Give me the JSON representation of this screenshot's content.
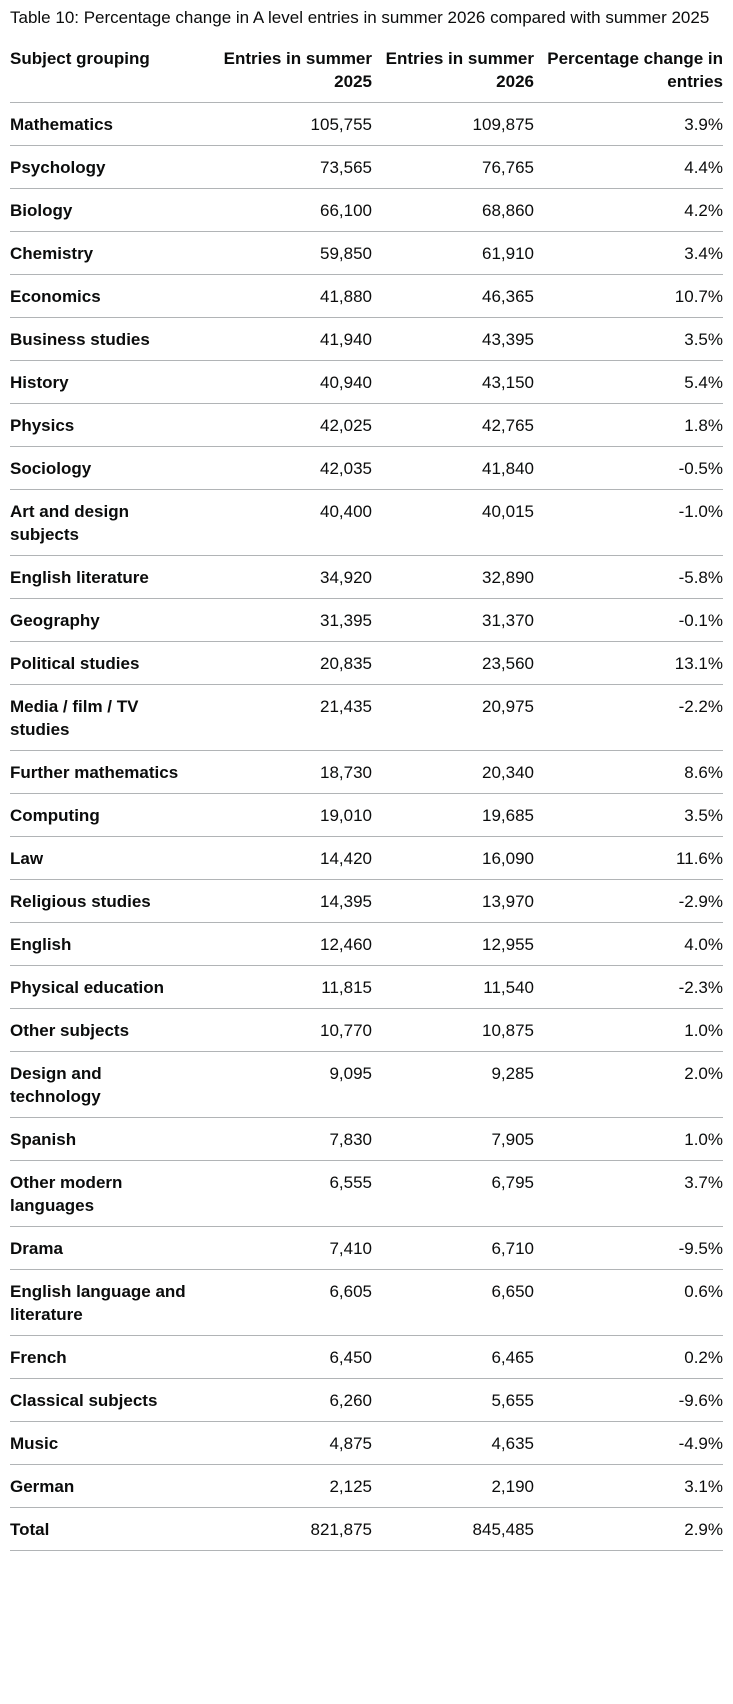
{
  "caption": "Table 10: Percentage change in A level entries in summer 2026 compared with summer 2025",
  "headers": [
    "Subject grouping",
    "Entries in summer 2025",
    "Entries in summer 2026",
    "Percentage change in entries"
  ],
  "rows": [
    [
      "Mathematics",
      "105,755",
      "109,875",
      "3.9%"
    ],
    [
      "Psychology",
      "73,565",
      "76,765",
      "4.4%"
    ],
    [
      "Biology",
      "66,100",
      "68,860",
      "4.2%"
    ],
    [
      "Chemistry",
      "59,850",
      "61,910",
      "3.4%"
    ],
    [
      "Economics",
      "41,880",
      "46,365",
      "10.7%"
    ],
    [
      "Business studies",
      "41,940",
      "43,395",
      "3.5%"
    ],
    [
      "History",
      "40,940",
      "43,150",
      "5.4%"
    ],
    [
      "Physics",
      "42,025",
      "42,765",
      "1.8%"
    ],
    [
      "Sociology",
      "42,035",
      "41,840",
      "-0.5%"
    ],
    [
      "Art and design subjects",
      "40,400",
      "40,015",
      "-1.0%"
    ],
    [
      "English literature",
      "34,920",
      "32,890",
      "-5.8%"
    ],
    [
      "Geography",
      "31,395",
      "31,370",
      "-0.1%"
    ],
    [
      "Political studies",
      "20,835",
      "23,560",
      "13.1%"
    ],
    [
      "Media / film / TV studies",
      "21,435",
      "20,975",
      "-2.2%"
    ],
    [
      "Further mathematics",
      "18,730",
      "20,340",
      "8.6%"
    ],
    [
      "Computing",
      "19,010",
      "19,685",
      "3.5%"
    ],
    [
      "Law",
      "14,420",
      "16,090",
      "11.6%"
    ],
    [
      "Religious studies",
      "14,395",
      "13,970",
      "-2.9%"
    ],
    [
      "English",
      "12,460",
      "12,955",
      "4.0%"
    ],
    [
      "Physical education",
      "11,815",
      "11,540",
      "-2.3%"
    ],
    [
      "Other subjects",
      "10,770",
      "10,875",
      "1.0%"
    ],
    [
      "Design and technology",
      "9,095",
      "9,285",
      "2.0%"
    ],
    [
      "Spanish",
      "7,830",
      "7,905",
      "1.0%"
    ],
    [
      "Other modern languages",
      "6,555",
      "6,795",
      "3.7%"
    ],
    [
      "Drama",
      "7,410",
      "6,710",
      "-9.5%"
    ],
    [
      "English language and literature",
      "6,605",
      "6,650",
      "0.6%"
    ],
    [
      "French",
      "6,450",
      "6,465",
      "0.2%"
    ],
    [
      "Classical subjects",
      "6,260",
      "5,655",
      "-9.6%"
    ],
    [
      "Music",
      "4,875",
      "4,635",
      "-4.9%"
    ],
    [
      "German",
      "2,125",
      "2,190",
      "3.1%"
    ],
    [
      "Total",
      "821,875",
      "845,485",
      "2.9%"
    ]
  ]
}
